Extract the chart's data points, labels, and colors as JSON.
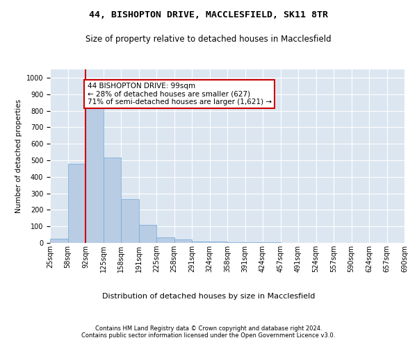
{
  "title1": "44, BISHOPTON DRIVE, MACCLESFIELD, SK11 8TR",
  "title2": "Size of property relative to detached houses in Macclesfield",
  "xlabel": "Distribution of detached houses by size in Macclesfield",
  "ylabel": "Number of detached properties",
  "footer1": "Contains HM Land Registry data © Crown copyright and database right 2024.",
  "footer2": "Contains public sector information licensed under the Open Government Licence v3.0.",
  "annotation_line1": "44 BISHOPTON DRIVE: 99sqm",
  "annotation_line2": "← 28% of detached houses are smaller (627)",
  "annotation_line3": "71% of semi-detached houses are larger (1,621) →",
  "bar_color": "#b8cce4",
  "bar_edge_color": "#6fa8d6",
  "background_color": "#dce6f1",
  "red_line_color": "#cc0000",
  "bin_labels": [
    "25sqm",
    "58sqm",
    "92sqm",
    "125sqm",
    "158sqm",
    "191sqm",
    "225sqm",
    "258sqm",
    "291sqm",
    "324sqm",
    "358sqm",
    "391sqm",
    "424sqm",
    "457sqm",
    "491sqm",
    "524sqm",
    "557sqm",
    "590sqm",
    "624sqm",
    "657sqm",
    "690sqm"
  ],
  "bar_values": [
    25,
    480,
    820,
    515,
    265,
    110,
    35,
    20,
    10,
    8,
    5,
    4,
    3,
    2,
    1,
    1,
    0,
    0,
    0,
    0
  ],
  "ylim": [
    0,
    1050
  ],
  "yticks": [
    0,
    100,
    200,
    300,
    400,
    500,
    600,
    700,
    800,
    900,
    1000
  ],
  "red_line_x": 2,
  "title1_fontsize": 9.5,
  "title2_fontsize": 8.5,
  "ylabel_fontsize": 7.5,
  "xlabel_fontsize": 8.0,
  "tick_fontsize": 7.0,
  "annotation_fontsize": 7.5,
  "footer_fontsize": 6.0
}
